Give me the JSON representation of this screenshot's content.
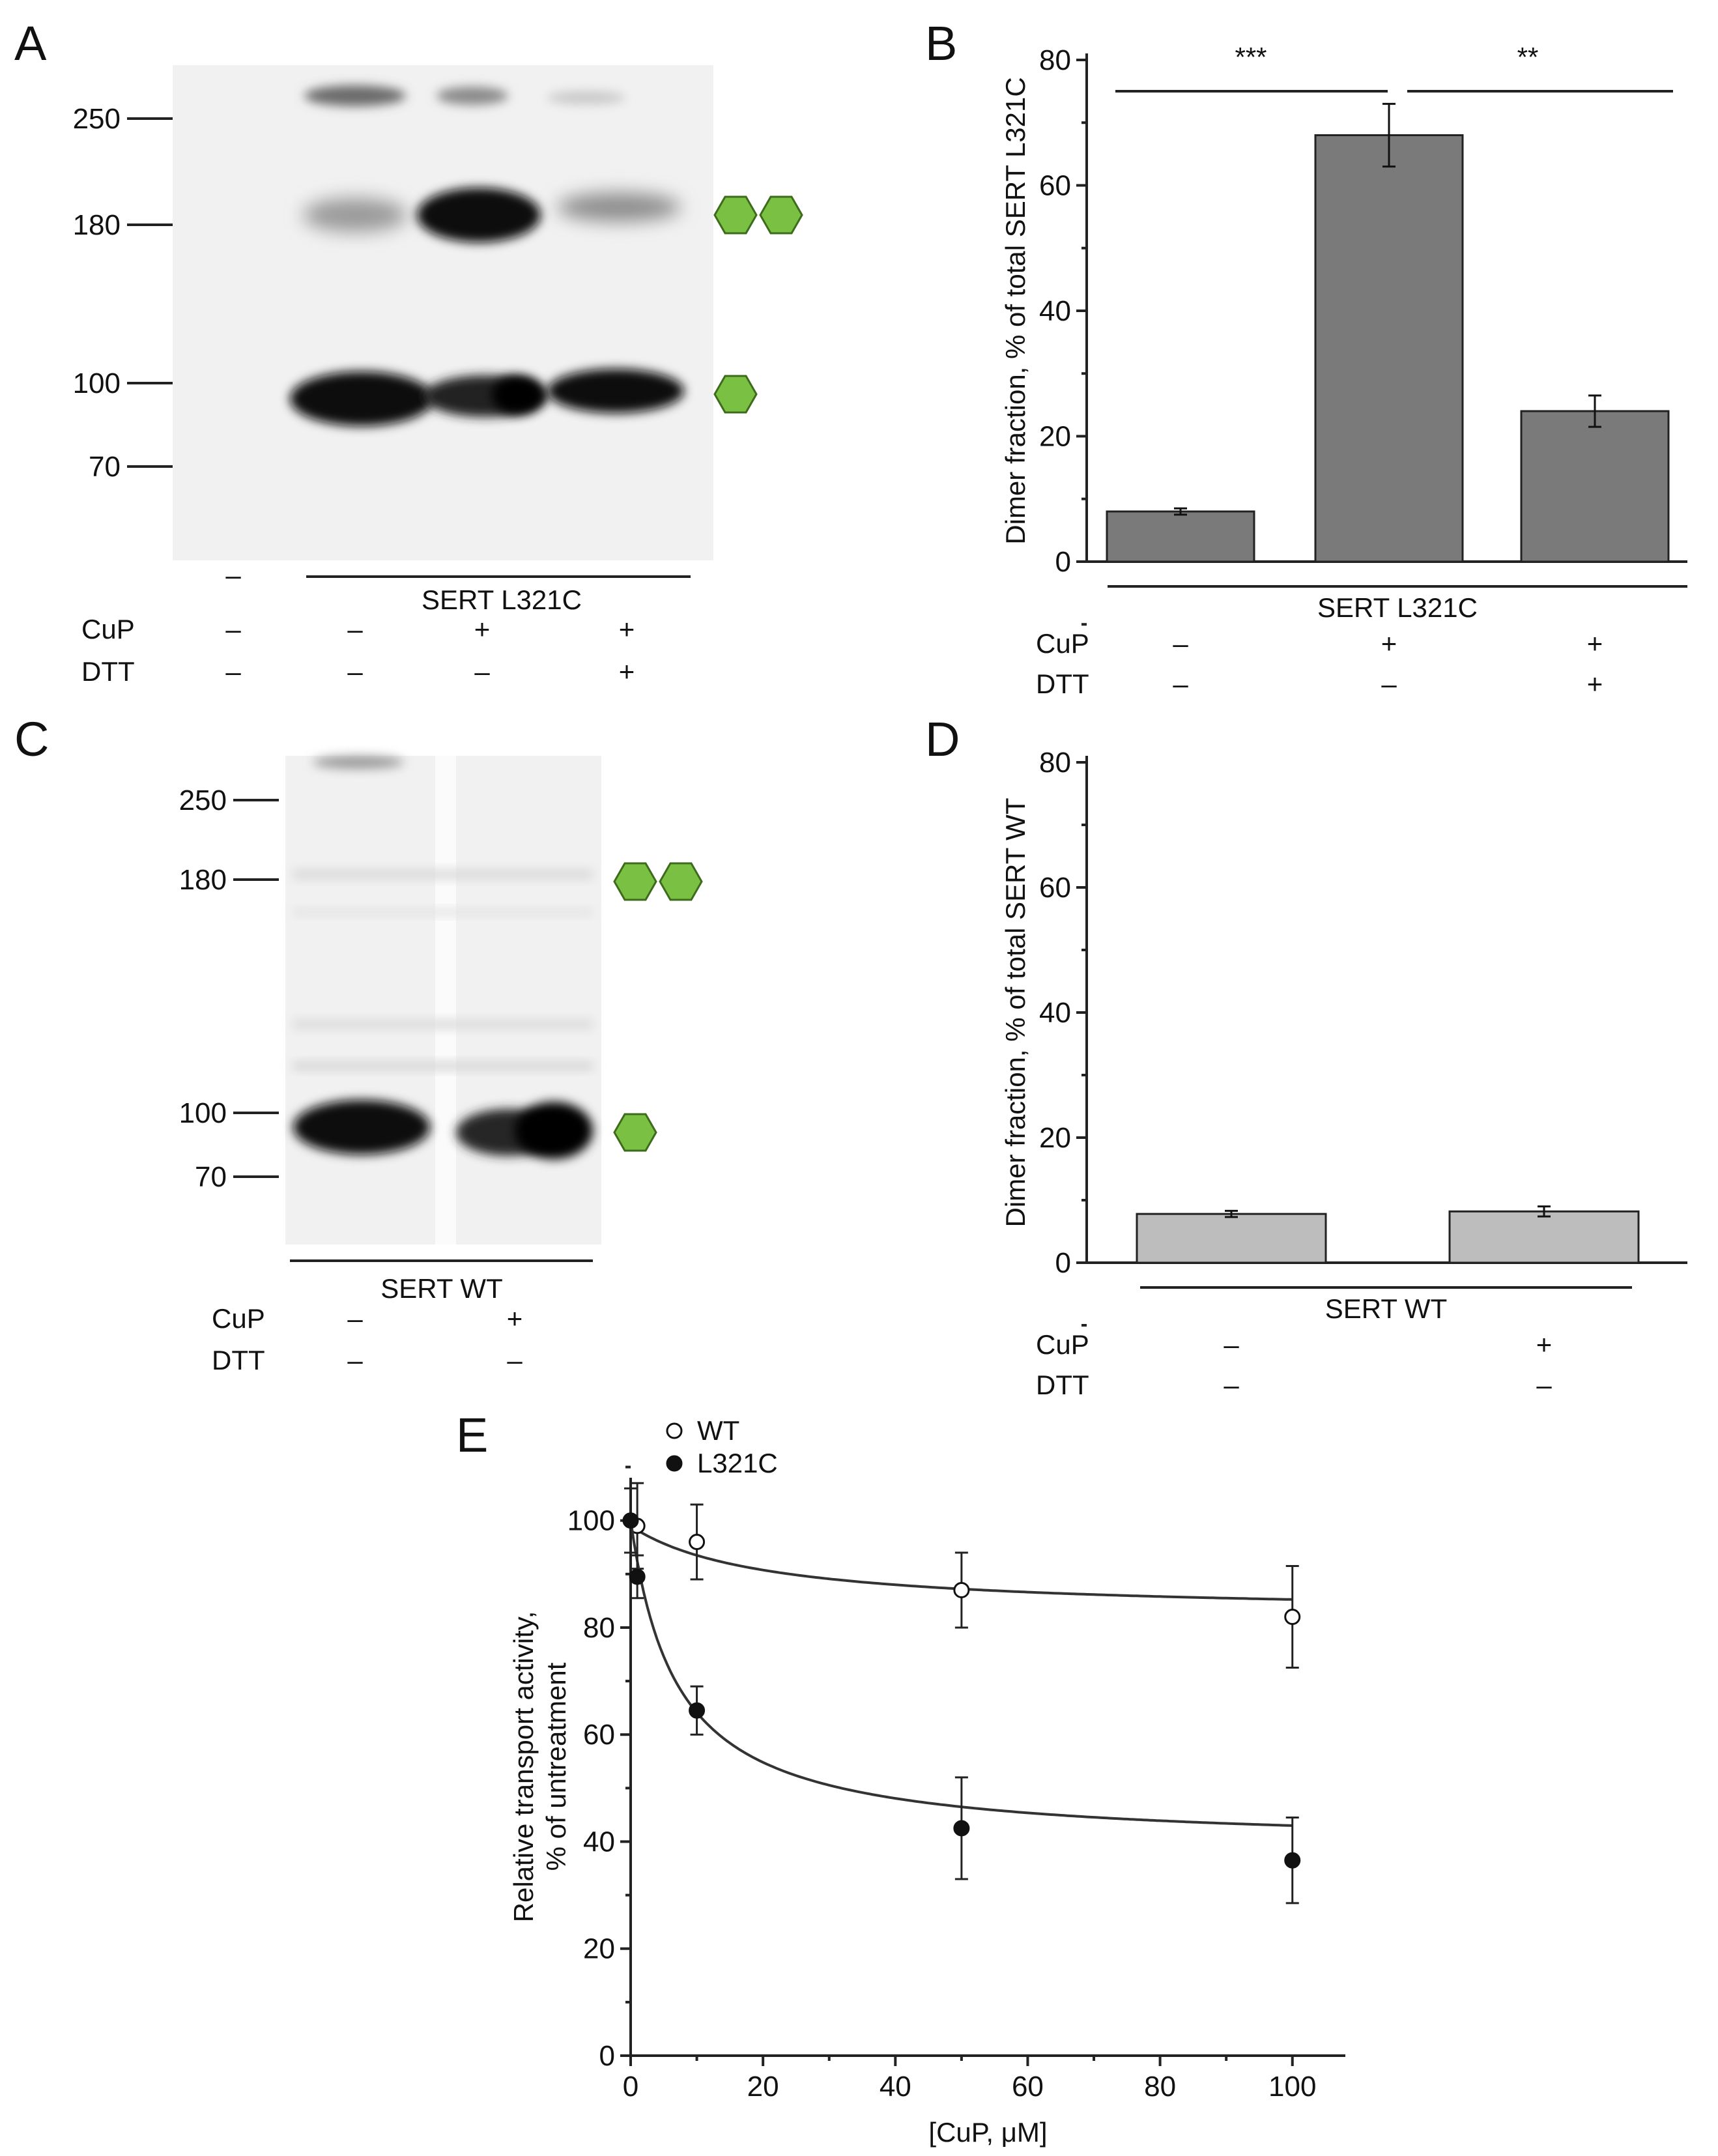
{
  "panels": {
    "A": {
      "letter": "A",
      "markers": [
        "250",
        "180",
        "100",
        "70"
      ],
      "group_label": "SERT L321C",
      "first_lane_label": "–",
      "rows": [
        {
          "name": "CuP",
          "signs": [
            "–",
            "–",
            "+",
            "+"
          ]
        },
        {
          "name": "DTT",
          "signs": [
            "–",
            "–",
            "–",
            "+"
          ]
        }
      ]
    },
    "B": {
      "letter": "B",
      "signif": [
        "***",
        "**"
      ]
    },
    "C": {
      "letter": "C",
      "markers": [
        "250",
        "180",
        "100",
        "70"
      ],
      "group_label": "SERT WT",
      "rows": [
        {
          "name": "CuP",
          "signs": [
            "–",
            "+"
          ]
        },
        {
          "name": "DTT",
          "signs": [
            "–",
            "–"
          ]
        }
      ]
    },
    "D": {
      "letter": "D"
    },
    "E": {
      "letter": "E"
    }
  },
  "colors": {
    "monomer_dimer_icon": "#7ac143",
    "bar_B": "#7a7a7a",
    "bar_D": "#bdbdbd"
  },
  "icons": [
    "hexagon-icon"
  ],
  "chart_data": [
    {
      "panel": "B",
      "type": "bar",
      "ylabel": "Dimer fraction, % of total SERT L321C",
      "ylim": [
        0,
        80
      ],
      "yticks": [
        0,
        20,
        40,
        60,
        80
      ],
      "group_label": "SERT L321C",
      "conditions": [
        {
          "name": "CuP",
          "signs": [
            "–",
            "+",
            "+"
          ]
        },
        {
          "name": "DTT",
          "signs": [
            "–",
            "–",
            "+"
          ]
        }
      ],
      "values": [
        8,
        68,
        24
      ],
      "errors": [
        0.5,
        5,
        2.5
      ],
      "grid": false
    },
    {
      "panel": "D",
      "type": "bar",
      "ylabel": "Dimer fraction, % of total SERT WT",
      "ylim": [
        0,
        80
      ],
      "yticks": [
        0,
        20,
        40,
        60,
        80
      ],
      "group_label": "SERT WT",
      "conditions": [
        {
          "name": "CuP",
          "signs": [
            "–",
            "+"
          ]
        },
        {
          "name": "DTT",
          "signs": [
            "–",
            "–"
          ]
        }
      ],
      "values": [
        7.8,
        8.2
      ],
      "errors": [
        0.5,
        0.8
      ],
      "grid": false
    },
    {
      "panel": "E",
      "type": "scatter",
      "xlabel": "[CuP, μM]",
      "ylabel": "Relative transport activity, % of untreatment",
      "ylabel_lines": [
        "Relative transport activity,",
        "% of untreatment"
      ],
      "xlim": [
        0,
        108
      ],
      "ylim": [
        0,
        108
      ],
      "xticks": [
        0,
        20,
        40,
        60,
        80,
        100
      ],
      "yticks": [
        0,
        20,
        40,
        60,
        80,
        100
      ],
      "legend": "top-left",
      "series": [
        {
          "name": "WT",
          "marker": "open-circle",
          "x": [
            1,
            10,
            50,
            100
          ],
          "y": [
            99,
            96,
            87,
            82
          ],
          "err": [
            8,
            7,
            7,
            9.5
          ],
          "fit": {
            "bottom": 82.5,
            "top": 99,
            "ic50": 20
          }
        },
        {
          "name": "L321C",
          "marker": "filled-circle",
          "x": [
            0,
            1,
            10,
            50,
            100
          ],
          "y": [
            100,
            89.5,
            64.5,
            42.5,
            36.5
          ],
          "err": [
            6,
            4,
            4.5,
            9.5,
            8
          ],
          "fit": {
            "bottom": 39,
            "top": 100,
            "ic50": 7
          }
        }
      ],
      "grid": false
    }
  ]
}
